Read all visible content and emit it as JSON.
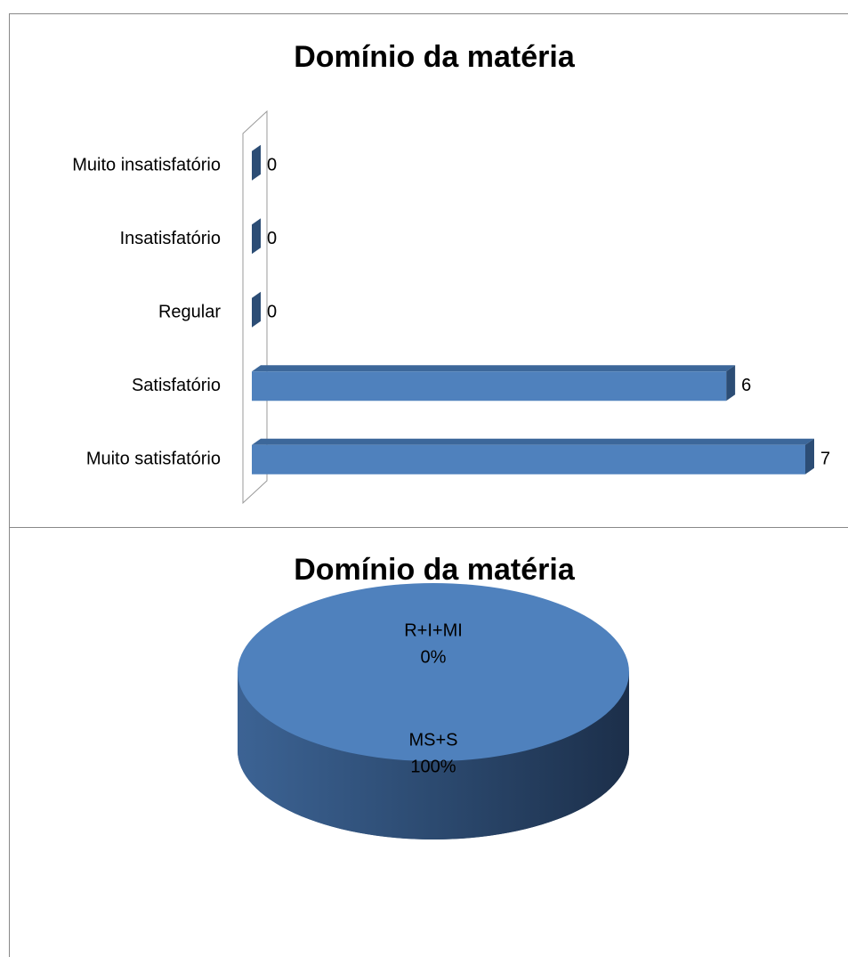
{
  "chart_data": [
    {
      "type": "bar",
      "title": "Domínio da matéria",
      "categories": [
        "Muito insatisfatório",
        "Insatisfatório",
        "Regular",
        "Satisfatório",
        "Muito satisfatório"
      ],
      "values": [
        0,
        0,
        0,
        6,
        7
      ],
      "color": "#4f81bd"
    },
    {
      "type": "pie",
      "title": "Domínio da matéria",
      "categories": [
        "R+I+MI",
        "MS+S"
      ],
      "values": [
        0,
        100
      ],
      "value_labels": [
        "0%",
        "100%"
      ],
      "color": "#4f81bd"
    }
  ]
}
